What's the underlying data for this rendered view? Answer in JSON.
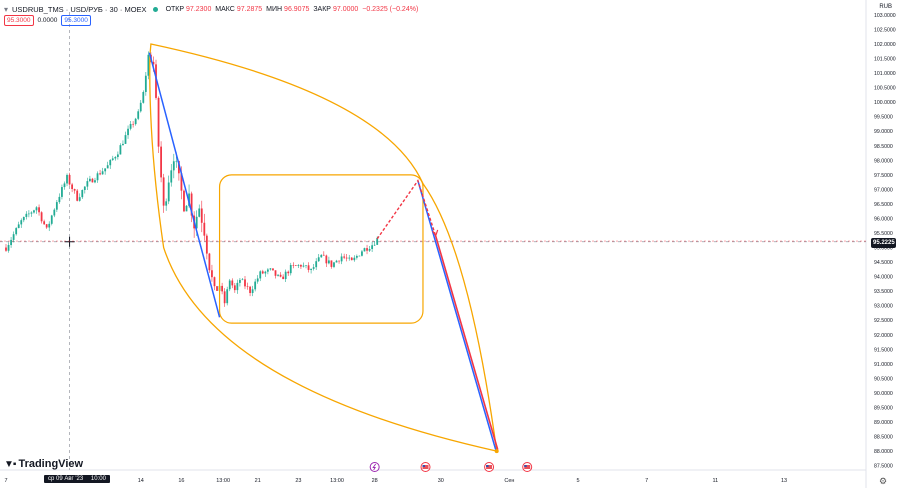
{
  "header": {
    "symbol": "USDRUB_TMS · USD/РУБ · 30 · MOEX",
    "open_label": "ОТКР",
    "open": "97.2300",
    "high_label": "МАКС",
    "high": "97.2875",
    "low_label": "МИН",
    "low": "96.9075",
    "close_label": "ЗАКР",
    "close": "97.0000",
    "change": "−0.2325 (−0.24%)",
    "sell": "95.3000",
    "spread": "0.0000",
    "buy": "95.3000"
  },
  "currency": "RUB",
  "last_price_label": "95.2225",
  "brand": "TradingView",
  "crosshair_date": "ср 09 Авг '23",
  "crosshair_time": "10:00",
  "colors": {
    "up": "#22ab94",
    "down": "#f23645",
    "orange": "#f7a600",
    "blue": "#2962ff",
    "red": "#f23645"
  },
  "chart_data": {
    "type": "candlestick",
    "symbol": "USDRUB_TMS",
    "interval": "30",
    "currency": "RUB",
    "y_ticks": [
      "103.0000",
      "102.5000",
      "102.0000",
      "101.5000",
      "101.0000",
      "100.5000",
      "100.0000",
      "99.5000",
      "99.0000",
      "98.5000",
      "98.0000",
      "97.5000",
      "97.0000",
      "96.5000",
      "96.0000",
      "95.5000",
      "95.0000",
      "94.5000",
      "94.0000",
      "93.5000",
      "93.0000",
      "92.5000",
      "92.0000",
      "91.5000",
      "91.0000",
      "90.5000",
      "90.0000",
      "89.5000",
      "89.0000",
      "88.5000",
      "88.0000",
      "87.5000"
    ],
    "ylim": [
      87.35,
      103.1
    ],
    "x_ticks": [
      {
        "t": 0.0,
        "label": "7"
      },
      {
        "t": 13.0,
        "label": "13:00"
      },
      {
        "t": 26.5,
        "label": "14"
      },
      {
        "t": 34.5,
        "label": "16"
      },
      {
        "t": 42.7,
        "label": "13:00"
      },
      {
        "t": 49.5,
        "label": "21"
      },
      {
        "t": 57.5,
        "label": "23"
      },
      {
        "t": 65.1,
        "label": "13:00"
      },
      {
        "t": 72.5,
        "label": "28"
      },
      {
        "t": 85.5,
        "label": "30"
      },
      {
        "t": 99.0,
        "label": "Сен"
      },
      {
        "t": 112.5,
        "label": "5"
      },
      {
        "t": 126.0,
        "label": "7"
      },
      {
        "t": 139.5,
        "label": "11"
      },
      {
        "t": 153.0,
        "label": "13"
      }
    ],
    "anchors": [
      [
        0,
        95.0
      ],
      [
        3,
        95.9
      ],
      [
        6,
        96.4
      ],
      [
        8,
        95.6
      ],
      [
        10,
        96.6
      ],
      [
        12,
        97.4
      ],
      [
        14,
        96.7
      ],
      [
        16,
        97.2
      ],
      [
        18,
        97.5
      ],
      [
        20,
        97.8
      ],
      [
        22,
        98.3
      ],
      [
        24,
        99.0
      ],
      [
        26,
        99.6
      ],
      [
        27,
        100.3
      ],
      [
        28,
        101.6
      ],
      [
        29,
        101.3
      ],
      [
        30,
        98.5
      ],
      [
        31,
        96.3
      ],
      [
        32,
        97.4
      ],
      [
        33,
        98.2
      ],
      [
        34,
        97.3
      ],
      [
        35,
        96.5
      ],
      [
        36,
        96.8
      ],
      [
        37,
        95.8
      ],
      [
        38,
        96.4
      ],
      [
        39,
        95.6
      ],
      [
        40,
        94.4
      ],
      [
        41,
        93.4
      ],
      [
        42,
        93.7
      ],
      [
        43,
        93.1
      ],
      [
        44,
        93.9
      ],
      [
        45,
        93.5
      ],
      [
        46,
        93.9
      ],
      [
        48,
        93.5
      ],
      [
        50,
        94.1
      ],
      [
        52,
        94.2
      ],
      [
        54,
        93.9
      ],
      [
        56,
        94.3
      ],
      [
        58,
        94.4
      ],
      [
        60,
        94.2
      ],
      [
        62,
        94.7
      ],
      [
        64,
        94.4
      ],
      [
        66,
        94.7
      ],
      [
        68,
        94.5
      ],
      [
        70,
        94.9
      ],
      [
        72,
        95.1
      ],
      [
        73,
        95.3
      ]
    ],
    "drawings": {
      "arc_envelope": {
        "start": [
          28.5,
          102.0
        ],
        "turn": [
          82,
          97.2
        ],
        "end": [
          96.5,
          88.0
        ],
        "bottom_return": [
          28.3,
          101.6
        ]
      },
      "rectangle": {
        "t1": 42,
        "t2": 82,
        "y1": 97.5,
        "y2": 92.4
      },
      "blue_leg_1": [
        [
          28.2,
          101.7
        ],
        [
          42,
          92.6
        ]
      ],
      "red_dashed_projection": [
        [
          73,
          95.3
        ],
        [
          81,
          97.3
        ],
        [
          84.5,
          95.4
        ]
      ],
      "red_line": [
        [
          84.5,
          95.4
        ],
        [
          96.7,
          88.05
        ]
      ],
      "blue_leg_2": [
        [
          81,
          97.3
        ],
        [
          96.3,
          88.05
        ]
      ]
    },
    "events": [
      {
        "t": 72.5,
        "kind": "lightning"
      },
      {
        "t": 82.5,
        "kind": "us-flag"
      },
      {
        "t": 95.0,
        "kind": "us-flag"
      },
      {
        "t": 102.5,
        "kind": "us-flag"
      }
    ]
  }
}
